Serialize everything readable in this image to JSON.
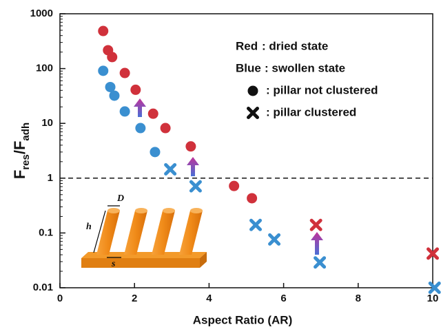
{
  "chart_data": {
    "type": "scatter",
    "xlabel": "Aspect Ratio (AR)",
    "ylabel_parts": [
      "F",
      "res",
      "/F",
      "adh"
    ],
    "xlim": [
      0,
      10
    ],
    "xticks": [
      0,
      2,
      4,
      6,
      8,
      10
    ],
    "ylim": [
      0.01,
      1000
    ],
    "yticks": [
      0.01,
      0.1,
      1,
      10,
      100,
      1000
    ],
    "log_y": true,
    "reference_line": 1,
    "series": [
      {
        "color": "#d0313b",
        "marker": "circle",
        "x": [
          1.16,
          1.29,
          1.4,
          1.74,
          2.03,
          2.5,
          2.83,
          3.51,
          4.67,
          5.15
        ],
        "values": [
          485,
          216,
          162,
          83,
          41,
          15,
          8.2,
          3.8,
          0.72,
          0.43
        ]
      },
      {
        "color": "#d0313b",
        "marker": "cross",
        "x": [
          6.87,
          10
        ],
        "values": [
          0.14,
          0.042
        ]
      },
      {
        "color": "#3a8fd0",
        "marker": "circle",
        "x": [
          1.16,
          1.35,
          1.46,
          1.74,
          2.16,
          2.55
        ],
        "values": [
          91,
          46,
          32,
          16.5,
          8.2,
          3.0
        ]
      },
      {
        "color": "#3a8fd0",
        "marker": "cross",
        "x": [
          2.96,
          3.64,
          5.25,
          5.75,
          6.97,
          10.05
        ],
        "values": [
          1.45,
          0.71,
          0.14,
          0.076,
          0.029,
          0.01
        ]
      }
    ],
    "legend": [
      {
        "key": "Red",
        "key_color": "#d0313b",
        "text": ": dried state"
      },
      {
        "key": "Blue",
        "key_color": "#3a8fd0",
        "text": ": swollen state"
      },
      {
        "marker": "circle",
        "text": ": pillar not clustered"
      },
      {
        "marker": "cross",
        "text": ": pillar clustered"
      }
    ],
    "inset_labels": {
      "diameter": "D",
      "height": "h",
      "spacing": "s"
    }
  }
}
